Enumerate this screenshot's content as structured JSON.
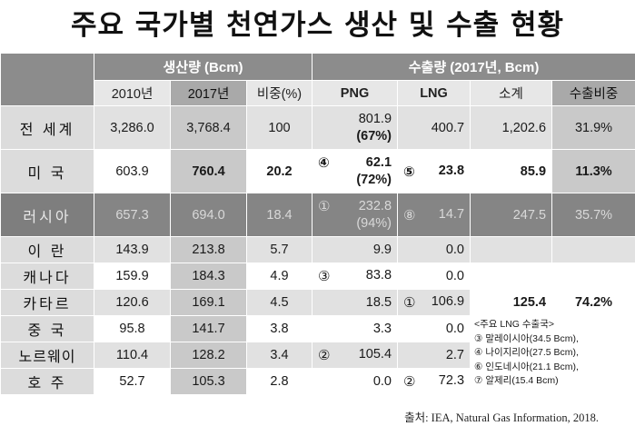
{
  "title": "주요 국가별 천연가스 생산 및 수출 현황",
  "headers": {
    "production_group": "생산량 (Bcm)",
    "export_group": "수출량 (2017년, Bcm)",
    "col_2010": "2010년",
    "col_2017": "2017년",
    "col_share": "비중(%)",
    "col_png": "PNG",
    "col_lng": "LNG",
    "col_subtotal": "소계",
    "col_export_share": "수출비중"
  },
  "rows": [
    {
      "country": "전 세계",
      "p2010": "3,286.0",
      "p2017": "3,768.4",
      "share": "100",
      "png": "801.9",
      "png_sub": "(67%)",
      "lng": "400.7",
      "subtotal": "1,202.6",
      "export_share": "31.9%"
    },
    {
      "country": "미 국",
      "p2010": "603.9",
      "p2017": "760.4",
      "share": "20.2",
      "png_rank": "④",
      "png": "62.1",
      "png_sub": "(72%)",
      "lng_rank": "⑤",
      "lng": "23.8",
      "subtotal": "85.9",
      "export_share": "11.3%"
    },
    {
      "country": "러시아",
      "p2010": "657.3",
      "p2017": "694.0",
      "share": "18.4",
      "png_rank": "①",
      "png": "232.8",
      "png_sub": "(94%)",
      "lng_rank": "⑧",
      "lng": "14.7",
      "subtotal": "247.5",
      "export_share": "35.7%"
    },
    {
      "country": "이 란",
      "p2010": "143.9",
      "p2017": "213.8",
      "share": "5.7",
      "png": "9.9",
      "lng": "0.0"
    },
    {
      "country": "캐나다",
      "p2010": "159.9",
      "p2017": "184.3",
      "share": "4.9",
      "png_rank": "③",
      "png": "83.8",
      "lng": "0.0"
    },
    {
      "country": "카타르",
      "p2010": "120.6",
      "p2017": "169.1",
      "share": "4.5",
      "png": "18.5",
      "lng_rank": "①",
      "lng": "106.9",
      "subtotal": "125.4",
      "export_share": "74.2%"
    },
    {
      "country": "중 국",
      "p2010": "95.8",
      "p2017": "141.7",
      "share": "3.8",
      "png": "3.3",
      "lng": "0.0"
    },
    {
      "country": "노르웨이",
      "p2010": "110.4",
      "p2017": "128.2",
      "share": "3.4",
      "png_rank": "②",
      "png": "105.4",
      "lng": "2.7"
    },
    {
      "country": "호 주",
      "p2010": "52.7",
      "p2017": "105.3",
      "share": "2.8",
      "png": "0.0",
      "lng_rank": "②",
      "lng": "72.3"
    }
  ],
  "lng_exporters_note": {
    "title": "<주요 LNG 수출국>",
    "items": [
      "③ 말레이시아(34.5 Bcm),",
      "④ 나이지리아(27.5 Bcm),",
      "⑥ 인도네시아(21.1 Bcm),",
      "⑦ 알제리(15.4 Bcm)"
    ]
  },
  "source": "출처: IEA, Natural Gas Information, 2018."
}
